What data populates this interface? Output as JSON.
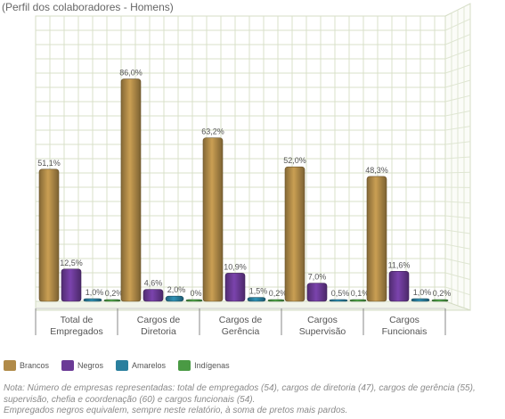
{
  "title": "(Perfil dos colaboradores - Homens)",
  "chart_data": {
    "type": "bar",
    "categories": [
      [
        "Total de",
        "Empregados"
      ],
      [
        "Cargos de",
        "Diretoria"
      ],
      [
        "Cargos de",
        "Gerência"
      ],
      [
        "Cargos",
        "Supervisão"
      ],
      [
        "Cargos",
        "Funcionais"
      ]
    ],
    "series": [
      {
        "name": "Brancos",
        "color": "#b08a48",
        "values": [
          51.1,
          86.0,
          63.2,
          52.0,
          48.3
        ],
        "labels": [
          "51,1%",
          "86,0%",
          "63,2%",
          "52,0%",
          "48,3%"
        ]
      },
      {
        "name": "Negros",
        "color": "#6b3a96",
        "values": [
          12.5,
          4.6,
          10.9,
          7.0,
          11.6
        ],
        "labels": [
          "12,5%",
          "4,6%",
          "10,9%",
          "7,0%",
          "11,6%"
        ]
      },
      {
        "name": "Amarelos",
        "color": "#2a7f9e",
        "values": [
          1.0,
          2.0,
          1.5,
          0.5,
          1.0
        ],
        "labels": [
          "1,0%",
          "2,0%",
          "1,5%",
          "0,5%",
          "1,0%"
        ]
      },
      {
        "name": "Indígenas",
        "color": "#4a9a44",
        "values": [
          0.2,
          0,
          0.2,
          0.1,
          0.2
        ],
        "labels": [
          "0,2%",
          "0%",
          "0,2%",
          "0,1%",
          "0,2%"
        ]
      }
    ],
    "ylim": [
      0,
      100
    ],
    "grid": true,
    "legend_position": "bottom-left"
  },
  "note": {
    "line1": "Nota: Número de empresas representadas: total de empregados (54), cargos de diretoria (47), cargos de gerência (55), supervisão, chefia e coordenação (60) e cargos funcionais (54).",
    "line2": "Empregados negros equivalem, sempre neste relatório, à soma de pretos mais pardos."
  }
}
